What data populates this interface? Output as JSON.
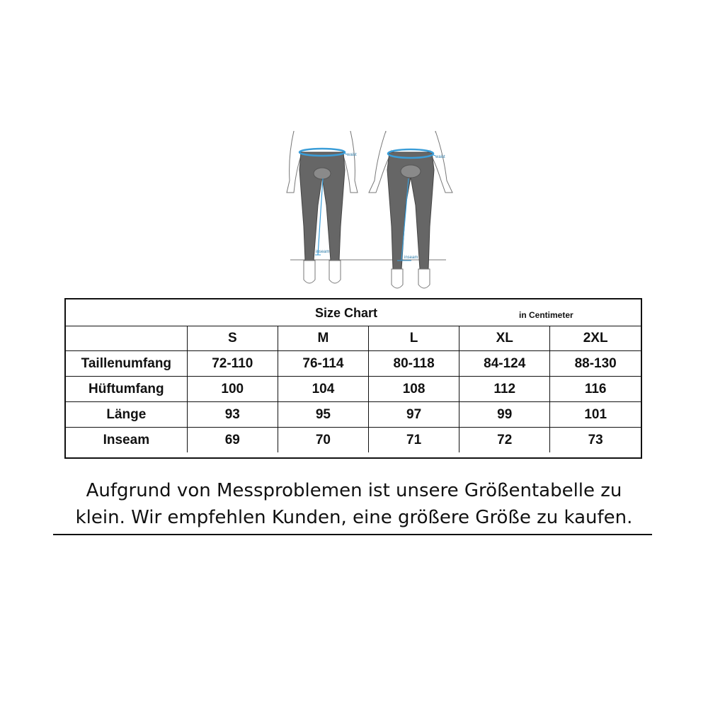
{
  "illustration": {
    "waist_label": "waist",
    "inseam_label": "inseam",
    "accent_color": "#3a9dd8"
  },
  "chart": {
    "title": "Size Chart",
    "unit": "in Centimeter",
    "sizes": [
      "S",
      "M",
      "L",
      "XL",
      "2XL"
    ],
    "rows": [
      {
        "label": "Taillenumfang",
        "values": [
          "72-110",
          "76-114",
          "80-118",
          "84-124",
          "88-130"
        ]
      },
      {
        "label": "Hüftumfang",
        "values": [
          "100",
          "104",
          "108",
          "112",
          "116"
        ]
      },
      {
        "label": "Länge",
        "values": [
          "93",
          "95",
          "97",
          "99",
          "101"
        ]
      },
      {
        "label": "Inseam",
        "values": [
          "69",
          "70",
          "71",
          "72",
          "73"
        ]
      }
    ]
  },
  "notice": {
    "line1": "Aufgrund von Messproblemen ist unsere Größentabelle zu",
    "line2": "klein. Wir empfehlen Kunden, eine größere Größe zu kaufen."
  }
}
